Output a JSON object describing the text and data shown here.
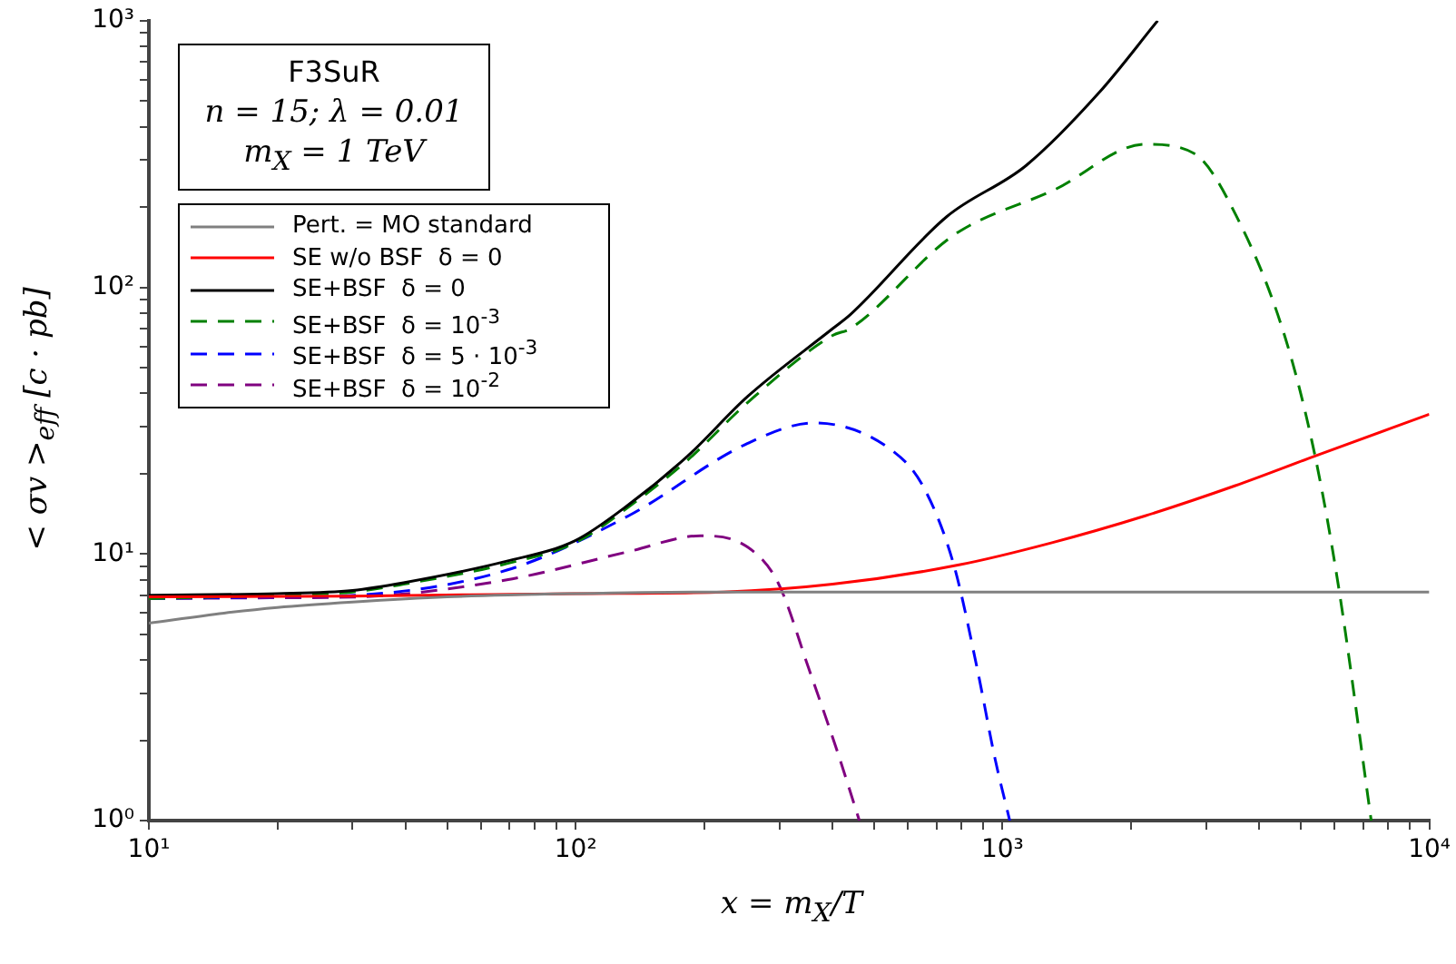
{
  "chart_data": {
    "type": "line",
    "xlabel": "x = m$_{X}$/T",
    "ylabel": "< σv >$_{eff}$ [c · pb]",
    "annotations": [
      "F3SuR",
      "n = 15; λ = 0.01",
      "m$_{X}$ = 1 TeV"
    ],
    "log": "xy",
    "grid": false,
    "legend": "top left",
    "marker": "none",
    "xlim": [
      10,
      10000
    ],
    "ylim": [
      1,
      1000
    ],
    "xticks": [
      {
        "value": 10,
        "label": "10¹"
      },
      {
        "value": 20,
        "label": null
      },
      {
        "value": 30,
        "label": null
      },
      {
        "value": 40,
        "label": null
      },
      {
        "value": 50,
        "label": null
      },
      {
        "value": 60,
        "label": null
      },
      {
        "value": 70,
        "label": null
      },
      {
        "value": 80,
        "label": null
      },
      {
        "value": 90,
        "label": null
      },
      {
        "value": 100,
        "label": "10²"
      },
      {
        "value": 200,
        "label": null
      },
      {
        "value": 300,
        "label": null
      },
      {
        "value": 400,
        "label": null
      },
      {
        "value": 500,
        "label": null
      },
      {
        "value": 600,
        "label": null
      },
      {
        "value": 700,
        "label": null
      },
      {
        "value": 800,
        "label": null
      },
      {
        "value": 900,
        "label": null
      },
      {
        "value": 1000,
        "label": "10³"
      },
      {
        "value": 2000,
        "label": null
      },
      {
        "value": 3000,
        "label": null
      },
      {
        "value": 4000,
        "label": null
      },
      {
        "value": 5000,
        "label": null
      },
      {
        "value": 6000,
        "label": null
      },
      {
        "value": 7000,
        "label": null
      },
      {
        "value": 8000,
        "label": null
      },
      {
        "value": 9000,
        "label": null
      },
      {
        "value": 10000,
        "label": "10⁴"
      }
    ],
    "yticks": [
      {
        "value": 1,
        "label": "10⁰"
      },
      {
        "value": 2,
        "label": null
      },
      {
        "value": 3,
        "label": null
      },
      {
        "value": 4,
        "label": null
      },
      {
        "value": 5,
        "label": null
      },
      {
        "value": 6,
        "label": null
      },
      {
        "value": 7,
        "label": null
      },
      {
        "value": 8,
        "label": null
      },
      {
        "value": 9,
        "label": null
      },
      {
        "value": 10,
        "label": "10¹"
      },
      {
        "value": 20,
        "label": null
      },
      {
        "value": 30,
        "label": null
      },
      {
        "value": 40,
        "label": null
      },
      {
        "value": 50,
        "label": null
      },
      {
        "value": 60,
        "label": null
      },
      {
        "value": 70,
        "label": null
      },
      {
        "value": 80,
        "label": null
      },
      {
        "value": 90,
        "label": null
      },
      {
        "value": 100,
        "label": "10²"
      },
      {
        "value": 200,
        "label": null
      },
      {
        "value": 300,
        "label": null
      },
      {
        "value": 400,
        "label": null
      },
      {
        "value": 500,
        "label": null
      },
      {
        "value": 600,
        "label": null
      },
      {
        "value": 700,
        "label": null
      },
      {
        "value": 800,
        "label": null
      },
      {
        "value": 900,
        "label": null
      },
      {
        "value": 1000,
        "label": "10³"
      }
    ],
    "series": [
      {
        "name": "Pert. = MO standard",
        "color": "#808080",
        "line_style": "solid",
        "x": [
          10,
          15,
          20,
          30,
          50,
          100,
          200,
          10000
        ],
        "values": [
          5.5,
          6.0,
          6.3,
          6.6,
          6.9,
          7.1,
          7.2,
          7.2
        ]
      },
      {
        "name": "SE w/o BSF  δ = 0",
        "color": "#ff0000",
        "line_style": "solid",
        "x": [
          10,
          30,
          100,
          222,
          400,
          791,
          1300,
          2160,
          3500,
          5400,
          10000
        ],
        "values": [
          6.9,
          6.95,
          7.1,
          7.2,
          7.7,
          9.1,
          11,
          13.9,
          18,
          23.3,
          33.4
        ]
      },
      {
        "name": "SE+BSF  δ = 0",
        "color": "#000000",
        "line_style": "solid",
        "x": [
          10,
          20,
          30,
          39.5,
          69,
          99.5,
          133,
          183,
          253,
          400,
          440,
          740,
          1135,
          1680,
          2310
        ],
        "values": [
          7.0,
          7.1,
          7.3,
          7.8,
          9.4,
          11.2,
          15.3,
          23.3,
          39,
          70,
          79,
          184,
          286,
          535,
          1000
        ]
      },
      {
        "name": "SE+BSF  δ = 10$^{-3}$",
        "color": "#008000",
        "line_style": "dashed",
        "x": [
          10,
          20,
          30,
          39.5,
          69,
          99.5,
          133,
          183,
          253,
          400,
          440,
          769,
          1330,
          2160,
          2810,
          3520,
          4580,
          5400,
          6140,
          7310
        ],
        "values": [
          6.8,
          7.0,
          7.2,
          7.7,
          9.2,
          11,
          15,
          22.5,
          37,
          66,
          70,
          157,
          233,
          344,
          318,
          187,
          66,
          23.3,
          7.4,
          1.0
        ]
      },
      {
        "name": "SE+BSF  δ = 5 · 10$^{-3}$",
        "color": "#0000ff",
        "line_style": "dashed",
        "x": [
          10,
          20,
          30.7,
          69,
          133,
          253,
          362,
          552,
          652,
          769,
          873,
          961,
          1040
        ],
        "values": [
          6.8,
          6.9,
          7.0,
          8.7,
          13.9,
          26,
          31,
          24.4,
          17.9,
          9.1,
          3.7,
          1.7,
          1.0
        ]
      },
      {
        "name": "SE+BSF  δ = 10$^{-2}$",
        "color": "#800080",
        "line_style": "dashed",
        "x": [
          10,
          20,
          30.7,
          69,
          133,
          196,
          253,
          298,
          352,
          411,
          462
        ],
        "values": [
          6.8,
          6.85,
          6.9,
          8.0,
          10.2,
          11.7,
          10.6,
          7.8,
          3.7,
          1.8,
          1.0
        ]
      }
    ]
  }
}
